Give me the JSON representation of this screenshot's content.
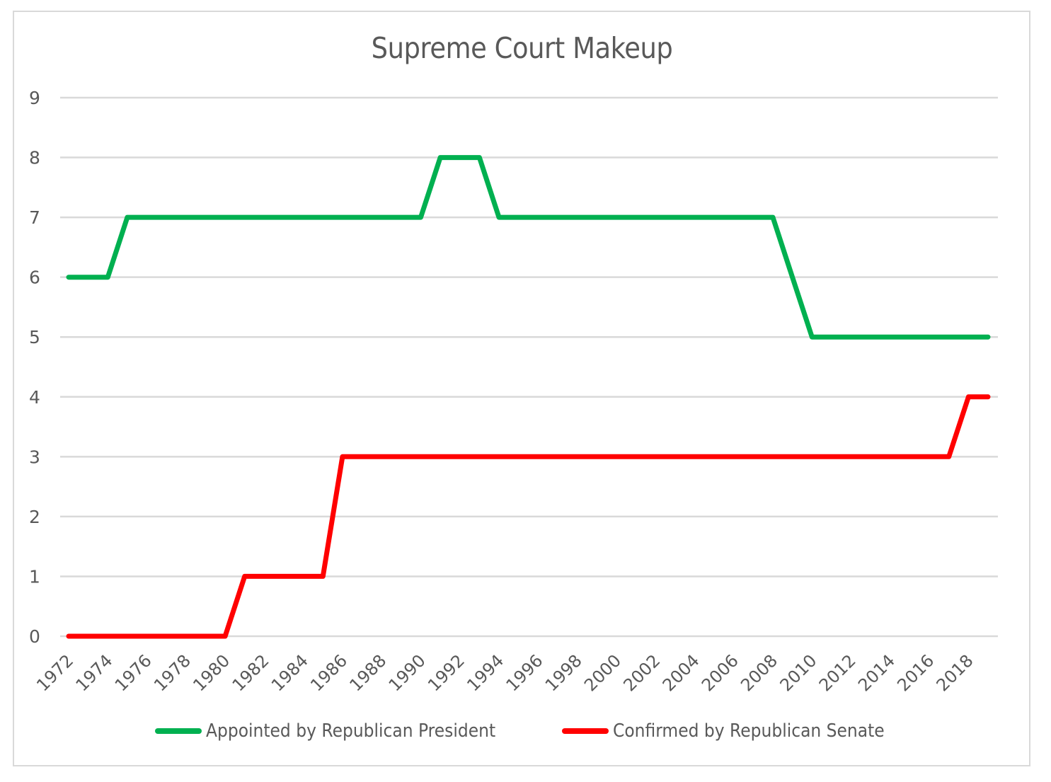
{
  "chart_data": {
    "type": "line",
    "title": "Supreme Court Makeup",
    "xlabel": "",
    "ylabel": "",
    "ylim": [
      0,
      9
    ],
    "yticks": [
      0,
      1,
      2,
      3,
      4,
      5,
      6,
      7,
      8,
      9
    ],
    "grid": true,
    "legend_position": "bottom",
    "x": [
      1972,
      1973,
      1974,
      1975,
      1976,
      1977,
      1978,
      1979,
      1980,
      1981,
      1982,
      1983,
      1984,
      1985,
      1986,
      1987,
      1988,
      1989,
      1990,
      1991,
      1992,
      1993,
      1994,
      1995,
      1996,
      1997,
      1998,
      1999,
      2000,
      2001,
      2002,
      2003,
      2004,
      2005,
      2006,
      2007,
      2008,
      2009,
      2010,
      2011,
      2012,
      2013,
      2014,
      2015,
      2016,
      2017,
      2018,
      2019
    ],
    "xtick_labels": [
      "1972",
      "1974",
      "1976",
      "1978",
      "1980",
      "1982",
      "1984",
      "1986",
      "1988",
      "1990",
      "1992",
      "1994",
      "1996",
      "1998",
      "2000",
      "2002",
      "2004",
      "2006",
      "2008",
      "2010",
      "2012",
      "2014",
      "2016",
      "2018"
    ],
    "series": [
      {
        "name": "Appointed by Republican President",
        "color": "#00b050",
        "values": [
          6,
          6,
          6,
          7,
          7,
          7,
          7,
          7,
          7,
          7,
          7,
          7,
          7,
          7,
          7,
          7,
          7,
          7,
          7,
          8,
          8,
          8,
          7,
          7,
          7,
          7,
          7,
          7,
          7,
          7,
          7,
          7,
          7,
          7,
          7,
          7,
          7,
          6,
          5,
          5,
          5,
          5,
          5,
          5,
          5,
          5,
          5,
          5
        ]
      },
      {
        "name": "Confirmed by Republican Senate",
        "color": "#ff0000",
        "values": [
          0,
          0,
          0,
          0,
          0,
          0,
          0,
          0,
          0,
          1,
          1,
          1,
          1,
          1,
          3,
          3,
          3,
          3,
          3,
          3,
          3,
          3,
          3,
          3,
          3,
          3,
          3,
          3,
          3,
          3,
          3,
          3,
          3,
          3,
          3,
          3,
          3,
          3,
          3,
          3,
          3,
          3,
          3,
          3,
          3,
          3,
          4,
          4
        ]
      }
    ]
  },
  "legend": {
    "items": [
      {
        "label": "Appointed by Republican President",
        "color": "#00b050"
      },
      {
        "label": "Confirmed by Republican Senate",
        "color": "#ff0000"
      }
    ]
  },
  "style": {
    "gridline_color": "#d9d9d9",
    "axis_text_color": "#595959",
    "frame_color": "#d9d9d9"
  }
}
